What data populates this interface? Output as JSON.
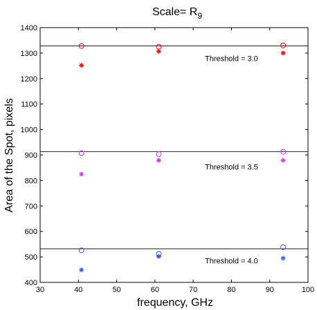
{
  "chart_data": {
    "type": "scatter",
    "title": "Scale= R",
    "title_subscript": "9",
    "xlabel": "frequency, GHz",
    "ylabel": "Area of the Spot, pixels",
    "xlim": [
      30,
      100
    ],
    "ylim": [
      400,
      1400
    ],
    "xticks": [
      30,
      40,
      50,
      60,
      70,
      80,
      90,
      100
    ],
    "yticks": [
      400,
      500,
      600,
      700,
      800,
      900,
      1000,
      1100,
      1200,
      1300,
      1400
    ],
    "grid": false,
    "series": [
      {
        "marker": "circle",
        "color": "#ff0000",
        "x": [
          40.8,
          61.0,
          93.5
        ],
        "y": [
          1328,
          1325,
          1330
        ]
      },
      {
        "marker": "asterisk",
        "color": "#ff0000",
        "x": [
          40.8,
          61.0,
          93.5
        ],
        "y": [
          1252,
          1307,
          1300
        ]
      },
      {
        "marker": "circle",
        "color": "#cc33ff",
        "x": [
          40.8,
          61.0,
          93.5
        ],
        "y": [
          907,
          903,
          913
        ]
      },
      {
        "marker": "asterisk",
        "color": "#cc33ff",
        "x": [
          40.8,
          61.0,
          93.5
        ],
        "y": [
          825,
          879,
          879
        ]
      },
      {
        "marker": "circle",
        "color": "#3355ff",
        "x": [
          40.8,
          61.0,
          93.5
        ],
        "y": [
          526,
          512,
          538
        ]
      },
      {
        "marker": "asterisk",
        "color": "#3355ff",
        "x": [
          40.8,
          61.0,
          93.5
        ],
        "y": [
          449,
          502,
          495
        ]
      }
    ],
    "hlines": [
      {
        "y": 1328,
        "color": "#000000"
      },
      {
        "y": 913,
        "color": "#000000"
      },
      {
        "y": 532,
        "color": "#000000"
      }
    ],
    "annotations": [
      {
        "text": "Threshold = 3.0",
        "x": 80,
        "y": 1268
      },
      {
        "text": "Threshold = 3.5",
        "x": 80,
        "y": 843
      },
      {
        "text": "Threshold = 4.0",
        "x": 80,
        "y": 475
      }
    ]
  }
}
